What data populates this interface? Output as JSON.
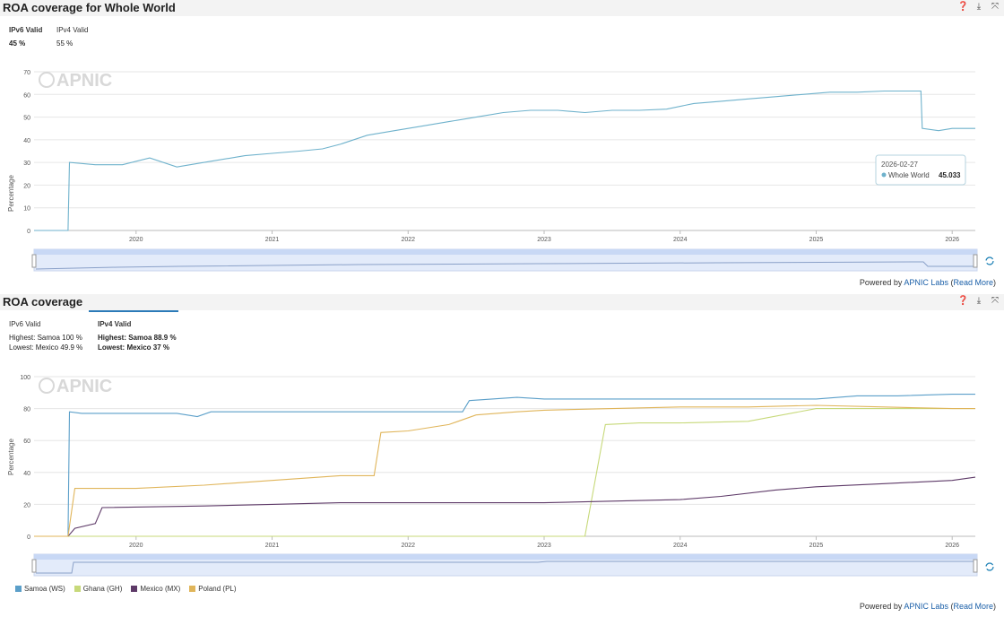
{
  "panel1": {
    "title": "ROA coverage for Whole World",
    "tabs": [
      {
        "label": "IPv6 Valid",
        "value": "45 %",
        "active": true
      },
      {
        "label": "IPv4 Valid",
        "value": "55 %",
        "active": false
      }
    ],
    "tooltip": {
      "date": "2026-02-27",
      "series": "Whole World",
      "value": "45.033"
    },
    "watermark": "APNIC",
    "powered_by": {
      "prefix": "Powered by",
      "link": "APNIC Labs",
      "open": "(",
      "more": "Read More",
      "close": ")"
    }
  },
  "panel2": {
    "title": "ROA coverage",
    "tabs": [
      {
        "label": "IPv6 Valid",
        "line1": "Highest: Samoa 100 %",
        "line2": "Lowest: Mexico 49.9 %",
        "active": false
      },
      {
        "label": "IPv4 Valid",
        "line1": "Highest: Samoa 88.9 %",
        "line2": "Lowest: Mexico 37 %",
        "active": true
      }
    ],
    "watermark": "APNIC",
    "legend": [
      {
        "name": "Samoa (WS)",
        "color": "#5b9fc9"
      },
      {
        "name": "Ghana (GH)",
        "color": "#c7d97a"
      },
      {
        "name": "Mexico (MX)",
        "color": "#5e3a68"
      },
      {
        "name": "Poland (PL)",
        "color": "#e0b55a"
      }
    ],
    "powered_by": {
      "prefix": "Powered by",
      "link": "APNIC Labs",
      "open": "(",
      "more": "Read More",
      "close": ")"
    }
  },
  "icons": [
    "help-icon",
    "download-icon",
    "expand-icon",
    "refresh-icon"
  ],
  "chart_data": [
    {
      "type": "line",
      "ylabel": "Percentage",
      "ylim": [
        0,
        70
      ],
      "yticks": [
        0,
        10,
        20,
        30,
        40,
        50,
        60,
        70
      ],
      "xticks": [
        "2020",
        "2021",
        "2022",
        "2023",
        "2024",
        "2025",
        "2026"
      ],
      "xlim": [
        2019.25,
        2026.17
      ],
      "series": [
        {
          "name": "Whole World",
          "color": "#6fb2cc",
          "x": [
            2019.25,
            2019.5,
            2019.51,
            2019.7,
            2019.85,
            2019.9,
            2020.1,
            2020.3,
            2020.5,
            2020.8,
            2021.0,
            2021.2,
            2021.37,
            2021.5,
            2021.7,
            2021.9,
            2022.1,
            2022.3,
            2022.5,
            2022.7,
            2022.9,
            2023.1,
            2023.3,
            2023.5,
            2023.7,
            2023.9,
            2024.1,
            2024.3,
            2024.5,
            2024.7,
            2024.9,
            2025.1,
            2025.3,
            2025.5,
            2025.7,
            2025.77,
            2025.78,
            2025.9,
            2026.0,
            2026.1,
            2026.17
          ],
          "y": [
            0,
            0,
            30,
            29,
            29,
            29,
            32,
            28,
            30,
            33,
            34,
            35,
            36,
            38,
            42,
            44,
            46,
            48,
            50,
            52,
            53,
            53,
            52,
            53,
            53,
            53.5,
            56,
            57,
            58,
            59,
            60,
            61,
            61,
            61.5,
            61.5,
            61.5,
            45,
            44,
            45,
            45,
            45
          ]
        }
      ]
    },
    {
      "type": "line",
      "ylabel": "Percentage",
      "ylim": [
        0,
        100
      ],
      "yticks": [
        0,
        20,
        40,
        60,
        80,
        100
      ],
      "xticks": [
        "2020",
        "2021",
        "2022",
        "2023",
        "2024",
        "2025",
        "2026"
      ],
      "xlim": [
        2019.25,
        2026.17
      ],
      "series": [
        {
          "name": "Samoa (WS)",
          "color": "#5b9fc9",
          "x": [
            2019.25,
            2019.5,
            2019.51,
            2019.6,
            2019.7,
            2020.3,
            2020.45,
            2020.55,
            2021.0,
            2021.5,
            2022.0,
            2022.4,
            2022.45,
            2022.8,
            2023.0,
            2023.5,
            2024.0,
            2024.5,
            2025.0,
            2025.3,
            2025.6,
            2026.0,
            2026.17
          ],
          "y": [
            0,
            0,
            78,
            77,
            77,
            77,
            75,
            78,
            78,
            78,
            78,
            78,
            85,
            87,
            86,
            86,
            86,
            86,
            86,
            88,
            88,
            89,
            89
          ]
        },
        {
          "name": "Ghana (GH)",
          "color": "#c7d97a",
          "x": [
            2019.25,
            2023.3,
            2023.45,
            2023.7,
            2024.0,
            2024.5,
            2025.0,
            2025.5,
            2026.0,
            2026.17
          ],
          "y": [
            0,
            0,
            70,
            71,
            71,
            72,
            80,
            80,
            80,
            80
          ]
        },
        {
          "name": "Mexico (MX)",
          "color": "#5e3a68",
          "x": [
            2019.25,
            2019.5,
            2019.55,
            2019.7,
            2019.75,
            2020.5,
            2021.0,
            2021.5,
            2022.0,
            2022.5,
            2023.0,
            2023.5,
            2024.0,
            2024.3,
            2024.7,
            2025.0,
            2025.5,
            2026.0,
            2026.17
          ],
          "y": [
            0,
            0,
            5,
            8,
            18,
            19,
            20,
            21,
            21,
            21,
            21,
            22,
            23,
            25,
            29,
            31,
            33,
            35,
            37
          ]
        },
        {
          "name": "Poland (PL)",
          "color": "#e0b55a",
          "x": [
            2019.25,
            2019.5,
            2019.55,
            2020.0,
            2020.5,
            2021.0,
            2021.5,
            2021.75,
            2021.8,
            2022.0,
            2022.3,
            2022.5,
            2022.8,
            2023.0,
            2023.5,
            2024.0,
            2024.5,
            2025.0,
            2025.5,
            2026.0,
            2026.17
          ],
          "y": [
            0,
            0,
            30,
            30,
            32,
            35,
            38,
            38,
            65,
            66,
            70,
            76,
            78,
            79,
            80,
            81,
            81,
            82,
            81,
            80,
            80
          ]
        }
      ]
    }
  ]
}
